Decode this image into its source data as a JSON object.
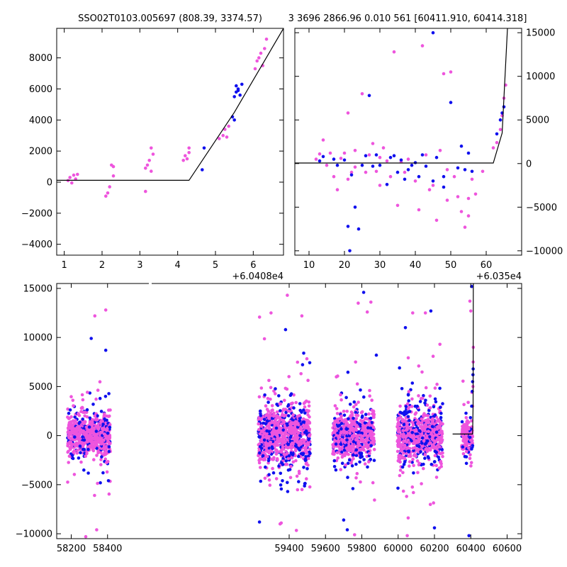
{
  "figure": {
    "title_left": "SSO02T0103.005697 (808.39, 3374.57)",
    "title_right": "3 3696 2866.96 0.010 561 [60411.910, 60414.318]"
  },
  "colors": {
    "blue": "#1010ee",
    "pink": "#ee55dd",
    "model": "#000000"
  },
  "chart_data": [
    {
      "id": "top-left",
      "type": "scatter",
      "title": "",
      "xlabel": "",
      "ylabel": "",
      "x_offset_label": "+6.0408e4",
      "xlim": [
        0.8,
        6.8
      ],
      "ylim": [
        -4700,
        9900
      ],
      "x_ticks": [
        1,
        2,
        3,
        4,
        5,
        6
      ],
      "x_tick_labels": [
        "1",
        "2",
        "3",
        "4",
        "5",
        "6"
      ],
      "y_ticks": [
        -4000,
        -2000,
        0,
        2000,
        4000,
        6000,
        8000
      ],
      "y_tick_labels": [
        "−4000",
        "−2000",
        "0",
        "2000",
        "4000",
        "6000",
        "8000"
      ],
      "y_axis_side": "left",
      "series": [
        {
          "color_key": "pink",
          "points": [
            [
              1.1,
              100
            ],
            [
              1.15,
              300
            ],
            [
              1.2,
              -50
            ],
            [
              1.25,
              450
            ],
            [
              1.3,
              200
            ],
            [
              1.35,
              500
            ],
            [
              2.1,
              -900
            ],
            [
              2.15,
              -700
            ],
            [
              2.2,
              -300
            ],
            [
              2.25,
              1100
            ],
            [
              2.3,
              1000
            ],
            [
              2.3,
              400
            ],
            [
              3.15,
              900
            ],
            [
              3.2,
              1100
            ],
            [
              3.25,
              1400
            ],
            [
              3.3,
              700
            ],
            [
              3.3,
              2200
            ],
            [
              3.35,
              1800
            ],
            [
              3.15,
              -600
            ],
            [
              4.15,
              1400
            ],
            [
              4.2,
              1700
            ],
            [
              4.25,
              1500
            ],
            [
              4.3,
              1900
            ],
            [
              4.3,
              2200
            ],
            [
              5.1,
              2800
            ],
            [
              5.2,
              3000
            ],
            [
              5.25,
              3400
            ],
            [
              5.3,
              2900
            ],
            [
              5.35,
              3600
            ],
            [
              6.05,
              7300
            ],
            [
              6.1,
              7800
            ],
            [
              6.15,
              8000
            ],
            [
              6.2,
              8300
            ],
            [
              6.25,
              7500
            ],
            [
              6.3,
              8600
            ],
            [
              6.35,
              9200
            ]
          ]
        },
        {
          "color_key": "blue",
          "points": [
            [
              4.65,
              800
            ],
            [
              4.7,
              2200
            ],
            [
              5.45,
              4200
            ],
            [
              5.5,
              5500
            ],
            [
              5.55,
              5800
            ],
            [
              5.55,
              6200
            ],
            [
              5.6,
              6000
            ],
            [
              5.65,
              5600
            ],
            [
              5.7,
              6300
            ],
            [
              5.5,
              4000
            ],
            [
              5.6,
              5900
            ]
          ]
        }
      ],
      "model_line": [
        [
          0.8,
          120
        ],
        [
          4.3,
          120
        ],
        [
          5.5,
          4500
        ],
        [
          6.8,
          9900
        ]
      ]
    },
    {
      "id": "top-right",
      "type": "scatter",
      "title": "",
      "xlabel": "",
      "ylabel": "",
      "x_offset_label": "+6.035e4",
      "xlim": [
        6,
        70
      ],
      "ylim": [
        -10500,
        15500
      ],
      "x_ticks": [
        10,
        20,
        30,
        40,
        50,
        60
      ],
      "x_tick_labels": [
        "10",
        "20",
        "30",
        "40",
        "50",
        "60"
      ],
      "y_ticks": [
        -10000,
        -5000,
        0,
        5000,
        10000,
        15000
      ],
      "y_tick_labels": [
        "−10000",
        "−5000",
        "0",
        "5000",
        "10000",
        "15000"
      ],
      "y_axis_side": "right",
      "series": [
        {
          "color_key": "pink",
          "points": [
            [
              12,
              500
            ],
            [
              13,
              1100
            ],
            [
              14,
              2700
            ],
            [
              15,
              -200
            ],
            [
              16,
              1200
            ],
            [
              17,
              -1500
            ],
            [
              18,
              -3000
            ],
            [
              19,
              600
            ],
            [
              20,
              1200
            ],
            [
              21,
              -1800
            ],
            [
              21,
              5800
            ],
            [
              22,
              -1000
            ],
            [
              23,
              -400
            ],
            [
              23,
              1500
            ],
            [
              25,
              8000
            ],
            [
              26,
              -1000
            ],
            [
              27,
              1000
            ],
            [
              28,
              2300
            ],
            [
              29,
              -900
            ],
            [
              30,
              700
            ],
            [
              30,
              -2500
            ],
            [
              31,
              1800
            ],
            [
              32,
              300
            ],
            [
              33,
              -1500
            ],
            [
              34,
              12800
            ],
            [
              35,
              -4800
            ],
            [
              36,
              200
            ],
            [
              37,
              -1000
            ],
            [
              38,
              500
            ],
            [
              40,
              -2000
            ],
            [
              41,
              -5300
            ],
            [
              42,
              13500
            ],
            [
              43,
              1000
            ],
            [
              44,
              -3000
            ],
            [
              45,
              -2500
            ],
            [
              46,
              -6500
            ],
            [
              47,
              1500
            ],
            [
              48,
              10300
            ],
            [
              49,
              -700
            ],
            [
              49,
              -4200
            ],
            [
              50,
              10500
            ],
            [
              51,
              -1500
            ],
            [
              52,
              -3800
            ],
            [
              53,
              -5500
            ],
            [
              54,
              -7300
            ],
            [
              55,
              -4000
            ],
            [
              55,
              -6000
            ],
            [
              56,
              -1800
            ],
            [
              57,
              -3500
            ],
            [
              59,
              -900
            ],
            [
              62,
              1800
            ],
            [
              63,
              2400
            ],
            [
              64,
              3900
            ],
            [
              64.5,
              5500
            ],
            [
              65,
              7500
            ],
            [
              65.5,
              9000
            ]
          ]
        },
        {
          "color_key": "blue",
          "points": [
            [
              13,
              300
            ],
            [
              14,
              800
            ],
            [
              17,
              500
            ],
            [
              18,
              -200
            ],
            [
              20,
              400
            ],
            [
              21,
              -7200
            ],
            [
              21.5,
              -10000
            ],
            [
              22,
              -1300
            ],
            [
              23,
              -5000
            ],
            [
              24,
              -7500
            ],
            [
              25,
              -200
            ],
            [
              26,
              900
            ],
            [
              27,
              7800
            ],
            [
              28,
              -300
            ],
            [
              29,
              1000
            ],
            [
              30,
              -200
            ],
            [
              32,
              -2400
            ],
            [
              33,
              700
            ],
            [
              34,
              900
            ],
            [
              35,
              -1000
            ],
            [
              36,
              400
            ],
            [
              37,
              -1800
            ],
            [
              38,
              -700
            ],
            [
              39,
              -200
            ],
            [
              40,
              100
            ],
            [
              41,
              -1500
            ],
            [
              42,
              1000
            ],
            [
              43,
              -300
            ],
            [
              45,
              -2000
            ],
            [
              45,
              15000
            ],
            [
              46,
              700
            ],
            [
              48,
              -1500
            ],
            [
              48,
              -2700
            ],
            [
              50,
              7000
            ],
            [
              52,
              -500
            ],
            [
              53,
              2000
            ],
            [
              54,
              -700
            ],
            [
              55,
              1200
            ],
            [
              56,
              -900
            ],
            [
              63,
              3400
            ],
            [
              64,
              5000
            ],
            [
              64.5,
              5800
            ],
            [
              65,
              6500
            ]
          ]
        }
      ],
      "model_line": [
        [
          6,
          60
        ],
        [
          62,
          60
        ],
        [
          64.5,
          3500
        ],
        [
          66,
          15500
        ]
      ]
    },
    {
      "id": "bottom",
      "type": "scatter",
      "title": "",
      "xlabel": "",
      "ylabel": "",
      "x_offset_label": "",
      "xlim": [
        58120,
        60680
      ],
      "ylim": [
        -10500,
        15500
      ],
      "x_ticks": [
        58200,
        58400,
        59400,
        59600,
        59800,
        60000,
        60200,
        60400,
        60600
      ],
      "x_tick_labels": [
        "58200",
        "58400",
        "59400",
        "59600",
        "59800",
        "60000",
        "60200",
        "60400",
        "60600"
      ],
      "y_ticks": [
        -10000,
        -5000,
        0,
        5000,
        10000,
        15000
      ],
      "y_tick_labels": [
        "−10000",
        "−5000",
        "0",
        "5000",
        "10000",
        "15000"
      ],
      "y_axis_side": "left",
      "seasons": [
        {
          "start": 58180,
          "end": 58415,
          "core_sigma": 1100,
          "pink_share": 0.78
        },
        {
          "start": 59230,
          "end": 59515,
          "core_sigma": 1600,
          "pink_share": 0.7
        },
        {
          "start": 59640,
          "end": 59870,
          "core_sigma": 1200,
          "pink_share": 0.7
        },
        {
          "start": 59995,
          "end": 60245,
          "core_sigma": 1400,
          "pink_share": 0.72
        },
        {
          "start": 60350,
          "end": 60410,
          "core_sigma": 900,
          "pink_share": 0.85
        }
      ],
      "outliers_pink": [
        [
          58330,
          12200
        ],
        [
          58390,
          12800
        ],
        [
          58280,
          -10300
        ],
        [
          58340,
          -9600
        ],
        [
          59300,
          12500
        ],
        [
          59390,
          14300
        ],
        [
          59350,
          -9000
        ],
        [
          59470,
          12200
        ],
        [
          59780,
          13500
        ],
        [
          59850,
          13600
        ],
        [
          59830,
          12600
        ],
        [
          59760,
          -10100
        ],
        [
          60080,
          12500
        ],
        [
          60150,
          12500
        ],
        [
          60050,
          -10200
        ],
        [
          60230,
          9300
        ],
        [
          60400,
          12700
        ],
        [
          60395,
          13700
        ]
      ],
      "outliers_blue": [
        [
          58310,
          9900
        ],
        [
          58390,
          8700
        ],
        [
          59380,
          10800
        ],
        [
          59480,
          8400
        ],
        [
          59810,
          14600
        ],
        [
          59700,
          -8600
        ],
        [
          59720,
          -9600
        ],
        [
          59880,
          8200
        ],
        [
          60040,
          11000
        ],
        [
          60180,
          12700
        ],
        [
          60200,
          -9400
        ],
        [
          60390,
          -10200
        ],
        [
          60405,
          15200
        ]
      ],
      "rise_pink": [
        [
          60405,
          1500
        ],
        [
          60410,
          3000
        ],
        [
          60412,
          5000
        ],
        [
          60413,
          7500
        ],
        [
          60414,
          9000
        ]
      ],
      "rise_blue": [
        [
          60405,
          3000
        ],
        [
          60408,
          4500
        ],
        [
          60410,
          5500
        ],
        [
          60412,
          6200
        ],
        [
          60413,
          6800
        ]
      ],
      "model_line": [
        [
          60300,
          160
        ],
        [
          60410,
          160
        ],
        [
          60412.5,
          3000
        ],
        [
          60414,
          15500
        ]
      ]
    }
  ]
}
